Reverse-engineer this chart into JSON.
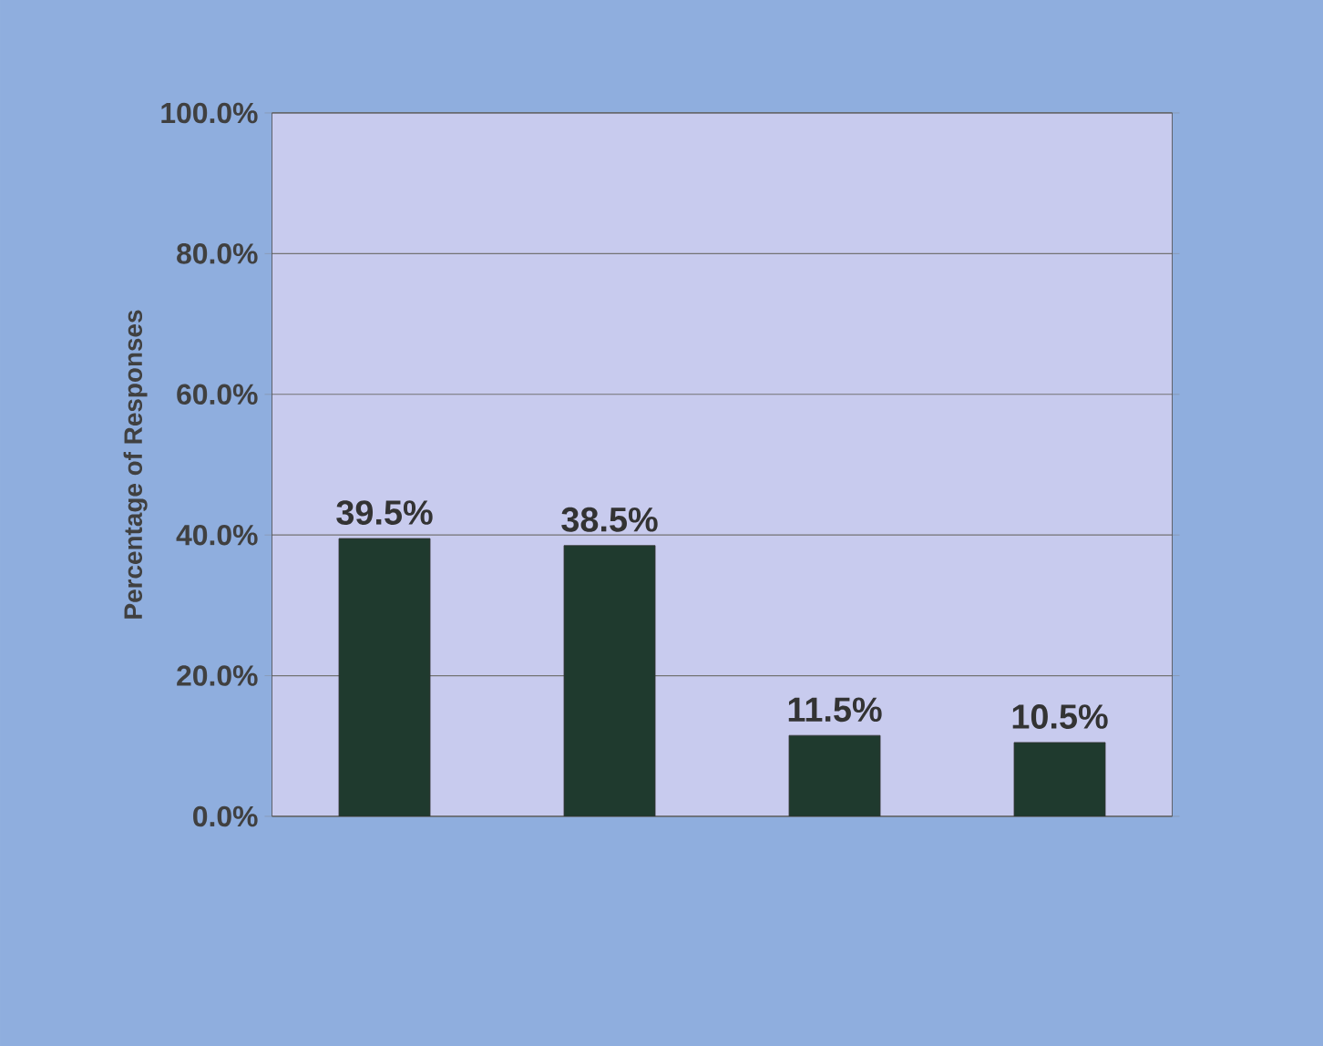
{
  "chart_data": {
    "type": "bar",
    "ylabel": "Percentage of Responses",
    "categories": [
      null,
      null,
      null,
      null
    ],
    "values": [
      39.5,
      38.5,
      11.5,
      10.5
    ],
    "value_labels": [
      "39.5%",
      "38.5%",
      "11.5%",
      "10.5%"
    ],
    "color": "#1f3a2e",
    "ylim": [
      0,
      100
    ],
    "yticks": [
      {
        "value": 0,
        "label": "0.0%"
      },
      {
        "value": 20,
        "label": "20.0%"
      },
      {
        "value": 40,
        "label": "40.0%"
      },
      {
        "value": 60,
        "label": "60.0%"
      },
      {
        "value": 80,
        "label": "80.0%"
      },
      {
        "value": 100,
        "label": "100.0%"
      }
    ],
    "grid": "y"
  }
}
